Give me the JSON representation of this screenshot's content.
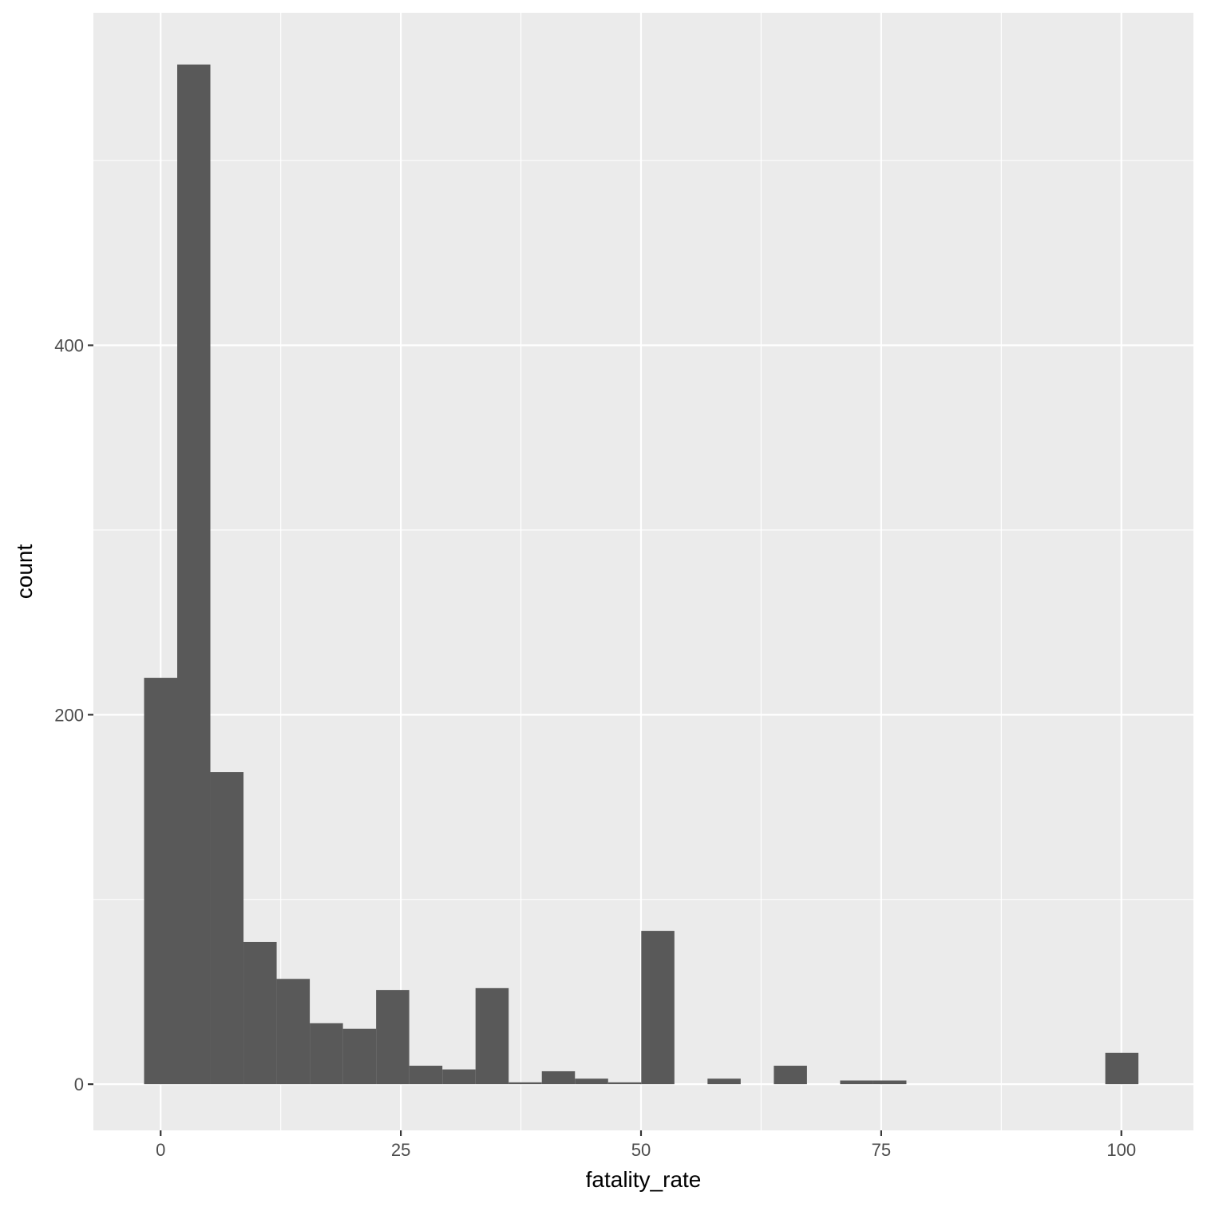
{
  "chart_data": {
    "type": "histogram",
    "xlabel": "fatality_rate",
    "ylabel": "count",
    "xlim": [
      -7,
      107.5
    ],
    "ylim": [
      -25,
      580
    ],
    "x_ticks": [
      0,
      25,
      50,
      75,
      100
    ],
    "x_tick_labels": [
      "0",
      "25",
      "50",
      "75",
      "100"
    ],
    "y_ticks": [
      0,
      200,
      400
    ],
    "y_tick_labels": [
      "0",
      "200",
      "400"
    ],
    "x_minor_gridlines": [
      12.5,
      37.5,
      62.5,
      87.5
    ],
    "y_minor_gridlines": [
      100,
      300,
      500
    ],
    "bin_width": 3.45,
    "bins": [
      {
        "x_center": 0.0,
        "count": 220
      },
      {
        "x_center": 3.45,
        "count": 552
      },
      {
        "x_center": 6.9,
        "count": 169
      },
      {
        "x_center": 10.35,
        "count": 77
      },
      {
        "x_center": 13.8,
        "count": 57
      },
      {
        "x_center": 17.25,
        "count": 33
      },
      {
        "x_center": 20.7,
        "count": 30
      },
      {
        "x_center": 24.15,
        "count": 51
      },
      {
        "x_center": 27.6,
        "count": 10
      },
      {
        "x_center": 31.05,
        "count": 8
      },
      {
        "x_center": 34.5,
        "count": 52
      },
      {
        "x_center": 37.95,
        "count": 1
      },
      {
        "x_center": 41.4,
        "count": 7
      },
      {
        "x_center": 44.85,
        "count": 3
      },
      {
        "x_center": 48.3,
        "count": 1
      },
      {
        "x_center": 51.75,
        "count": 83
      },
      {
        "x_center": 55.2,
        "count": 0
      },
      {
        "x_center": 58.65,
        "count": 3
      },
      {
        "x_center": 62.1,
        "count": 0
      },
      {
        "x_center": 65.55,
        "count": 10
      },
      {
        "x_center": 69.0,
        "count": 0
      },
      {
        "x_center": 72.45,
        "count": 2
      },
      {
        "x_center": 75.9,
        "count": 2
      },
      {
        "x_center": 79.35,
        "count": 0
      },
      {
        "x_center": 82.8,
        "count": 0
      },
      {
        "x_center": 86.25,
        "count": 0
      },
      {
        "x_center": 89.7,
        "count": 0
      },
      {
        "x_center": 93.15,
        "count": 0
      },
      {
        "x_center": 96.6,
        "count": 0
      },
      {
        "x_center": 100.05,
        "count": 17
      }
    ],
    "grid": true,
    "colors": {
      "panel_background": "#EBEBEB",
      "grid": "#FFFFFF",
      "bar_fill": "#595959",
      "tick_text": "#4D4D4D",
      "axis_ticks": "#333333"
    }
  }
}
